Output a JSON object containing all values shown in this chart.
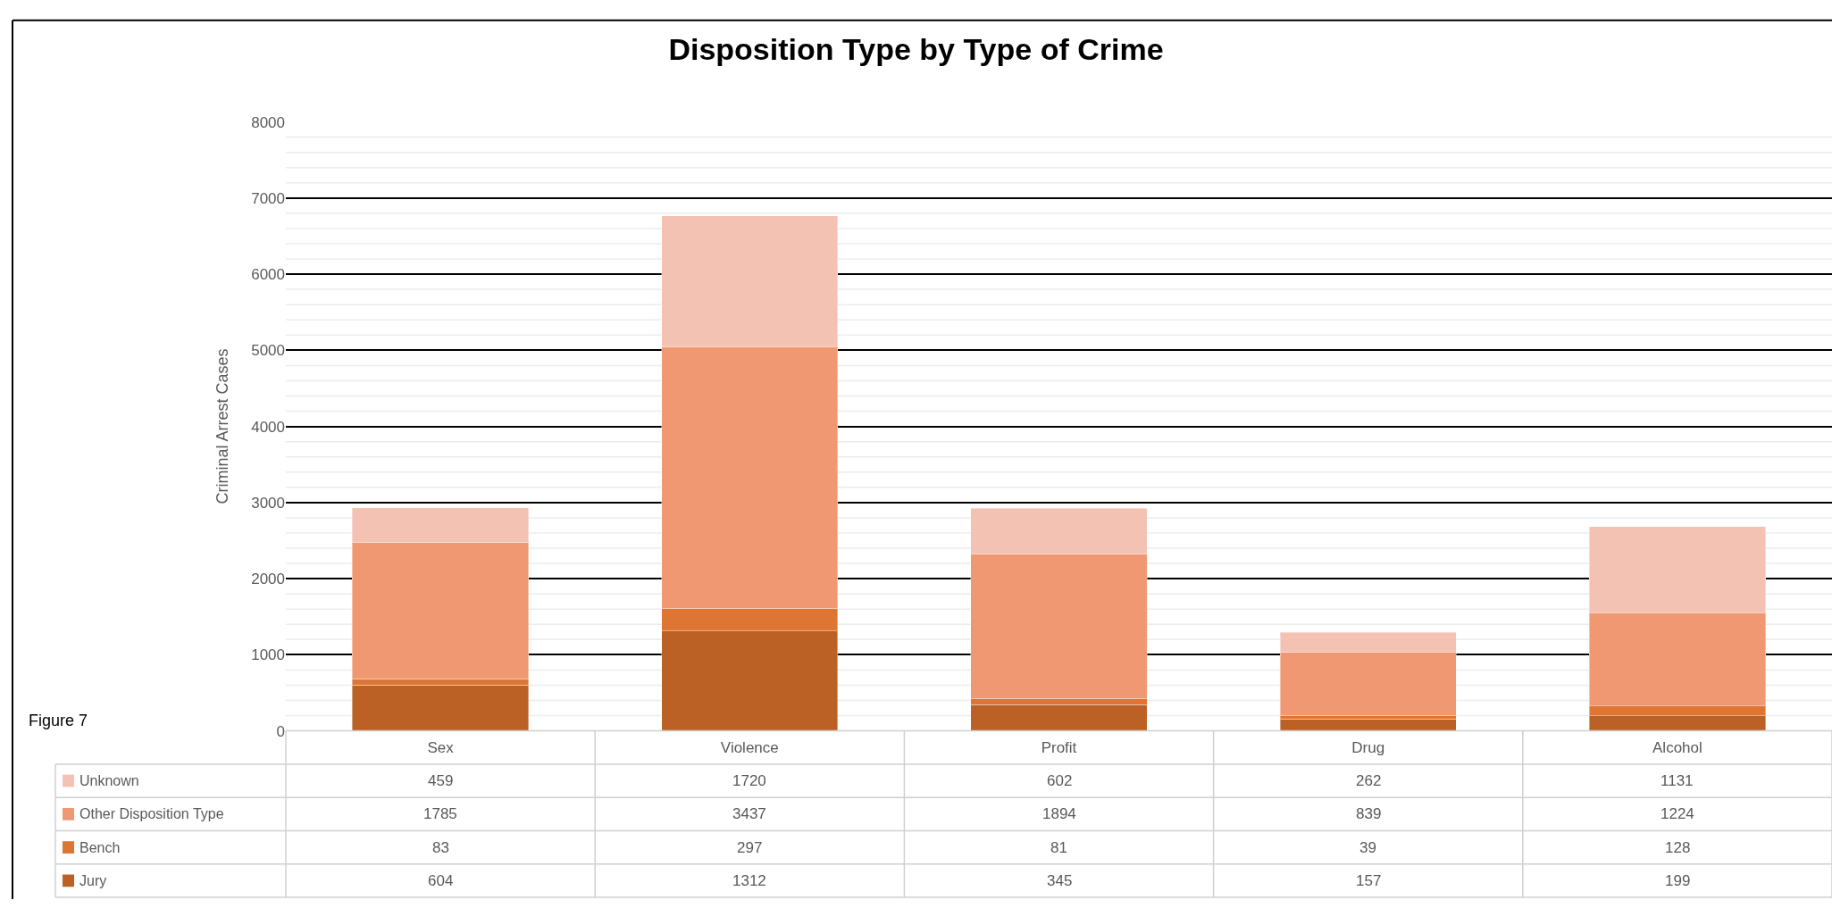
{
  "chart_data": {
    "type": "bar",
    "title": "Disposition Type by Type of Crime",
    "ylabel": "Criminal Arrest Cases",
    "categories": [
      "Sex",
      "Violence",
      "Profit",
      "Drug",
      "Alcohol"
    ],
    "series": [
      {
        "name": "Jury",
        "color": "#bb6125",
        "values": [
          604,
          1312,
          345,
          157,
          199
        ]
      },
      {
        "name": "Bench",
        "color": "#de7532",
        "values": [
          83,
          297,
          81,
          39,
          128
        ]
      },
      {
        "name": "Other Disposition Type",
        "color": "#ef9872",
        "values": [
          1785,
          3437,
          1894,
          839,
          1224
        ]
      },
      {
        "name": "Unknown",
        "color": "#f4c2b2",
        "values": [
          459,
          1720,
          602,
          262,
          1131
        ]
      }
    ],
    "stacked": true,
    "data_labels": true,
    "grid": "y",
    "legend": "bottom",
    "ylim": [
      0,
      8000
    ],
    "yticks": [
      0,
      {
        "value": 200,
        "label": null
      },
      {
        "value": 400,
        "label": null
      },
      {
        "value": 600,
        "label": null
      },
      {
        "value": 800,
        "label": null
      },
      1000,
      {
        "value": 1200,
        "label": null
      },
      {
        "value": 1400,
        "label": null
      },
      {
        "value": 1600,
        "label": null
      },
      {
        "value": 1800,
        "label": null
      },
      2000,
      {
        "value": 2200,
        "label": null
      },
      {
        "value": 2400,
        "label": null
      },
      {
        "value": 2600,
        "label": null
      },
      {
        "value": 2800,
        "label": null
      },
      3000,
      {
        "value": 3200,
        "label": null
      },
      {
        "value": 3400,
        "label": null
      },
      {
        "value": 3600,
        "label": null
      },
      {
        "value": 3800,
        "label": null
      },
      4000,
      {
        "value": 4200,
        "label": null
      },
      {
        "value": 4400,
        "label": null
      },
      {
        "value": 4600,
        "label": null
      },
      {
        "value": 4800,
        "label": null
      },
      5000,
      {
        "value": 5200,
        "label": null
      },
      {
        "value": 5400,
        "label": null
      },
      {
        "value": 5600,
        "label": null
      },
      {
        "value": 5800,
        "label": null
      },
      6000,
      {
        "value": 6200,
        "label": null
      },
      {
        "value": 6400,
        "label": null
      },
      {
        "value": 6600,
        "label": null
      },
      {
        "value": 6800,
        "label": null
      },
      7000,
      {
        "value": 7200,
        "label": null
      },
      {
        "value": 7400,
        "label": null
      },
      {
        "value": 7600,
        "label": null
      },
      {
        "value": 7800,
        "label": null
      },
      8000
    ],
    "annotations": [
      "Figure 7"
    ]
  }
}
